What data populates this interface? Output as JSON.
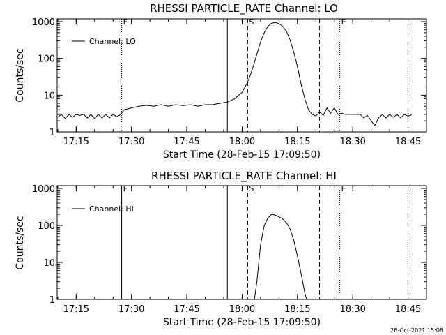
{
  "stamp": "26-Oct-2021 15:08",
  "chart_data": [
    {
      "type": "line",
      "title": "RHESSI PARTICLE_RATE Channel: LO",
      "xlabel": "Start Time (28-Feb-15 17:09:50)",
      "ylabel": "Counts/sec",
      "yscale": "log",
      "ylim": [
        1,
        1000
      ],
      "yticks": [
        "1",
        "10",
        "100",
        "1000"
      ],
      "xlim": [
        "17:09:50",
        "18:50:00"
      ],
      "xticks": [
        "17:15",
        "17:30",
        "17:45",
        "18:00",
        "18:15",
        "18:30",
        "18:45"
      ],
      "legend": {
        "placement": "top-left",
        "entries": [
          "Channel: LO"
        ]
      },
      "flags": [
        {
          "label": "F",
          "time": "17:27:20",
          "style": "dotted"
        },
        {
          "label": "",
          "time": "17:56:00",
          "style": "solid"
        },
        {
          "label": "S",
          "time": "18:01:30",
          "style": "dashed"
        },
        {
          "label": "",
          "time": "18:21:00",
          "style": "dashed"
        },
        {
          "label": "E",
          "time": "18:26:30",
          "style": "dotted"
        },
        {
          "label": "",
          "time": "18:45:00",
          "style": "dotted"
        }
      ],
      "series": [
        {
          "name": "Channel: LO",
          "points": [
            [
              "17:10:00",
              2.5
            ],
            [
              "17:11:00",
              3.0
            ],
            [
              "17:12:00",
              2.3
            ],
            [
              "17:13:00",
              3.0
            ],
            [
              "17:14:00",
              2.5
            ],
            [
              "17:15:00",
              3.0
            ],
            [
              "17:16:00",
              2.8
            ],
            [
              "17:17:00",
              3.0
            ],
            [
              "17:18:00",
              2.4
            ],
            [
              "17:19:00",
              3.0
            ],
            [
              "17:20:00",
              2.3
            ],
            [
              "17:21:00",
              3.0
            ],
            [
              "17:22:00",
              2.4
            ],
            [
              "17:23:00",
              3.0
            ],
            [
              "17:24:00",
              2.4
            ],
            [
              "17:25:00",
              3.0
            ],
            [
              "17:26:00",
              2.6
            ],
            [
              "17:27:00",
              2.9
            ],
            [
              "17:28:00",
              4.0
            ],
            [
              "17:30:00",
              4.5
            ],
            [
              "17:32:00",
              5.0
            ],
            [
              "17:34:00",
              5.3
            ],
            [
              "17:36:00",
              5.0
            ],
            [
              "17:38:00",
              5.5
            ],
            [
              "17:40:00",
              5.0
            ],
            [
              "17:42:00",
              5.5
            ],
            [
              "17:44:00",
              5.2
            ],
            [
              "17:46:00",
              5.5
            ],
            [
              "17:48:00",
              5.0
            ],
            [
              "17:50:00",
              5.5
            ],
            [
              "17:52:00",
              5.5
            ],
            [
              "17:54:00",
              6.0
            ],
            [
              "17:56:00",
              6.5
            ],
            [
              "17:58:00",
              8.0
            ],
            [
              "18:00:00",
              12.0
            ],
            [
              "18:01:00",
              18.0
            ],
            [
              "18:02:00",
              30.0
            ],
            [
              "18:03:00",
              60.0
            ],
            [
              "18:04:00",
              130.0
            ],
            [
              "18:05:00",
              280.0
            ],
            [
              "18:06:00",
              500.0
            ],
            [
              "18:07:00",
              750.0
            ],
            [
              "18:08:00",
              900.0
            ],
            [
              "18:09:00",
              950.0
            ],
            [
              "18:10:00",
              880.0
            ],
            [
              "18:11:00",
              750.0
            ],
            [
              "18:12:00",
              550.0
            ],
            [
              "18:13:00",
              320.0
            ],
            [
              "18:14:00",
              150.0
            ],
            [
              "18:15:00",
              60.0
            ],
            [
              "18:16:00",
              20.0
            ],
            [
              "18:17:00",
              8.0
            ],
            [
              "18:18:00",
              4.0
            ],
            [
              "18:19:00",
              3.0
            ],
            [
              "18:20:00",
              2.7
            ],
            [
              "18:21:00",
              3.5
            ],
            [
              "18:22:00",
              2.8
            ],
            [
              "18:23:00",
              4.5
            ],
            [
              "18:24:00",
              3.2
            ],
            [
              "18:25:00",
              4.5
            ],
            [
              "18:26:00",
              3.0
            ],
            [
              "18:27:00",
              3.2
            ],
            [
              "18:28:00",
              3.0
            ],
            [
              "18:30:00",
              3.0
            ],
            [
              "18:32:00",
              3.0
            ],
            [
              "18:33:00",
              2.4
            ],
            [
              "18:34:00",
              2.8
            ],
            [
              "18:35:00",
              2.0
            ],
            [
              "18:36:00",
              1.5
            ],
            [
              "18:37:00",
              2.4
            ],
            [
              "18:38:00",
              3.0
            ],
            [
              "18:39:00",
              2.4
            ],
            [
              "18:40:00",
              3.0
            ],
            [
              "18:41:00",
              2.5
            ],
            [
              "18:42:00",
              3.0
            ],
            [
              "18:43:00",
              2.4
            ],
            [
              "18:44:00",
              3.0
            ],
            [
              "18:45:00",
              2.7
            ],
            [
              "18:46:00",
              2.9
            ]
          ]
        }
      ]
    },
    {
      "type": "line",
      "title": "RHESSI PARTICLE_RATE Channel: HI",
      "xlabel": "Start Time (28-Feb-15 17:09:50)",
      "ylabel": "Counts/sec",
      "yscale": "log",
      "ylim": [
        1,
        1000
      ],
      "yticks": [
        "1",
        "10",
        "100",
        "1000"
      ],
      "xlim": [
        "17:09:50",
        "18:50:00"
      ],
      "xticks": [
        "17:15",
        "17:30",
        "17:45",
        "18:00",
        "18:15",
        "18:30",
        "18:45"
      ],
      "legend": {
        "placement": "top-left",
        "entries": [
          "Channel: HI"
        ]
      },
      "flags": [
        {
          "label": "F",
          "time": "17:27:20",
          "style": "solid"
        },
        {
          "label": "",
          "time": "17:56:00",
          "style": "solid"
        },
        {
          "label": "S",
          "time": "18:01:30",
          "style": "dashed"
        },
        {
          "label": "",
          "time": "18:21:00",
          "style": "dashed"
        },
        {
          "label": "E",
          "time": "18:26:30",
          "style": "dotted"
        },
        {
          "label": "",
          "time": "18:45:00",
          "style": "dotted"
        }
      ],
      "series": [
        {
          "name": "Channel: HI",
          "points": [
            [
              "18:03:20",
              1.0
            ],
            [
              "18:04:00",
              3.0
            ],
            [
              "18:05:00",
              30.0
            ],
            [
              "18:06:00",
              100.0
            ],
            [
              "18:07:00",
              160.0
            ],
            [
              "18:08:00",
              200.0
            ],
            [
              "18:09:00",
              190.0
            ],
            [
              "18:10:00",
              170.0
            ],
            [
              "18:11:00",
              150.0
            ],
            [
              "18:12:00",
              120.0
            ],
            [
              "18:13:00",
              80.0
            ],
            [
              "18:14:00",
              40.0
            ],
            [
              "18:15:00",
              15.0
            ],
            [
              "18:16:00",
              5.0
            ],
            [
              "18:17:00",
              1.5
            ],
            [
              "18:17:30",
              1.0
            ]
          ]
        }
      ]
    }
  ]
}
